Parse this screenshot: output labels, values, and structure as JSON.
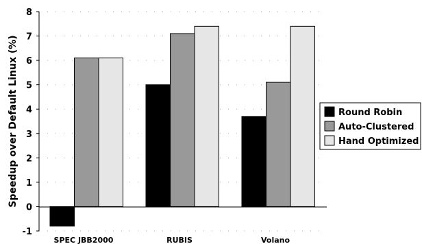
{
  "chart_data": {
    "type": "bar",
    "title": "",
    "xlabel": "",
    "ylabel": "Speedup over Default Linux (%)",
    "ylim": [
      -1,
      8
    ],
    "yticks": [
      "-1",
      "0",
      "1",
      "2",
      "3",
      "4",
      "5",
      "6",
      "7",
      "8"
    ],
    "grid": "dotted",
    "legend_position": "right",
    "categories": [
      "SPEC JBB2000",
      "RUBIS",
      "Volano"
    ],
    "series": [
      {
        "name": "Round Robin",
        "color": "#000000",
        "values": [
          -0.8,
          5.0,
          3.7
        ]
      },
      {
        "name": "Auto-Clustered",
        "color": "#999999",
        "values": [
          6.1,
          7.1,
          5.1
        ]
      },
      {
        "name": "Hand Optimized",
        "color": "#e6e6e6",
        "values": [
          6.1,
          7.4,
          7.4
        ]
      }
    ]
  }
}
